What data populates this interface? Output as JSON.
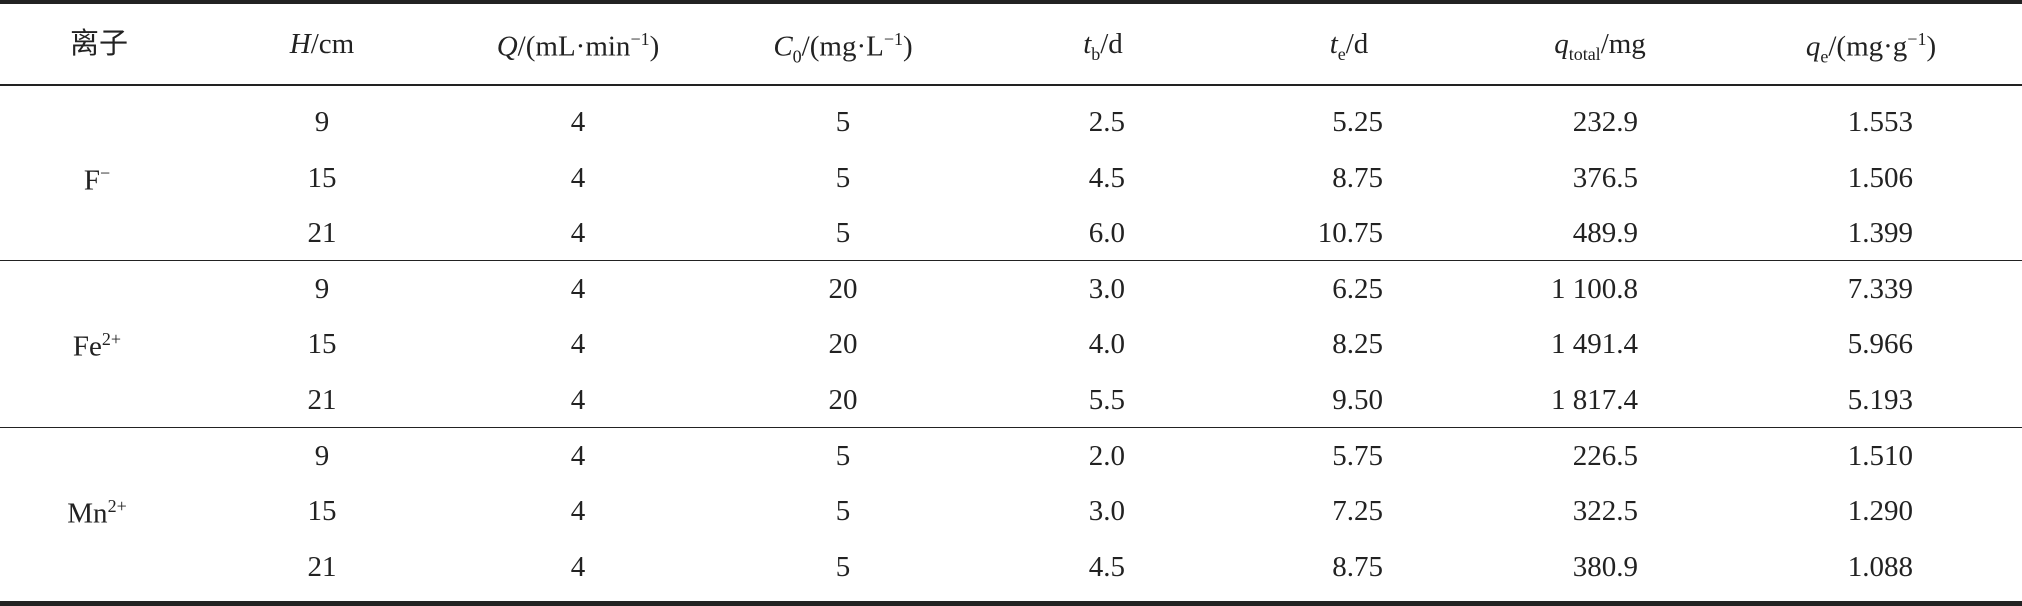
{
  "header": [
    {
      "text": "离子"
    },
    {
      "symbol": "H",
      "unit": "/cm"
    },
    {
      "symbol": "Q",
      "unit": "/(mL·min",
      "sup": "−1",
      "close": ")"
    },
    {
      "symbol": "C",
      "sub": "0",
      "unit": "/(mg·L",
      "sup": "−1",
      "close": ")"
    },
    {
      "symbol": "t",
      "sub": "b",
      "unit": "/d"
    },
    {
      "symbol": "t",
      "sub": "e",
      "unit": "/d"
    },
    {
      "symbol": "q",
      "sub": "total",
      "unit": "/mg"
    },
    {
      "symbol": "q",
      "sub": "e",
      "unit": "/(mg·g",
      "sup": "−1",
      "close": ")"
    }
  ],
  "groups": [
    {
      "ion": {
        "symbol": "F",
        "charge": "−"
      },
      "rows": [
        [
          "9",
          "4",
          "5",
          "2.5",
          "5.25",
          "232.9",
          "1.553"
        ],
        [
          "15",
          "4",
          "5",
          "4.5",
          "8.75",
          "376.5",
          "1.506"
        ],
        [
          "21",
          "4",
          "5",
          "6.0",
          "10.75",
          "489.9",
          "1.399"
        ]
      ]
    },
    {
      "ion": {
        "symbol": "Fe",
        "charge": "2+"
      },
      "rows": [
        [
          "9",
          "4",
          "20",
          "3.0",
          "6.25",
          "1 100.8",
          "7.339"
        ],
        [
          "15",
          "4",
          "20",
          "4.0",
          "8.25",
          "1 491.4",
          "5.966"
        ],
        [
          "21",
          "4",
          "20",
          "5.5",
          "9.50",
          "1 817.4",
          "5.193"
        ]
      ]
    },
    {
      "ion": {
        "symbol": "Mn",
        "charge": "2+"
      },
      "rows": [
        [
          "9",
          "4",
          "5",
          "2.0",
          "5.75",
          "226.5",
          "1.510"
        ],
        [
          "15",
          "4",
          "5",
          "3.0",
          "7.25",
          "322.5",
          "1.290"
        ],
        [
          "21",
          "4",
          "5",
          "4.5",
          "8.75",
          "380.9",
          "1.088"
        ]
      ]
    }
  ]
}
